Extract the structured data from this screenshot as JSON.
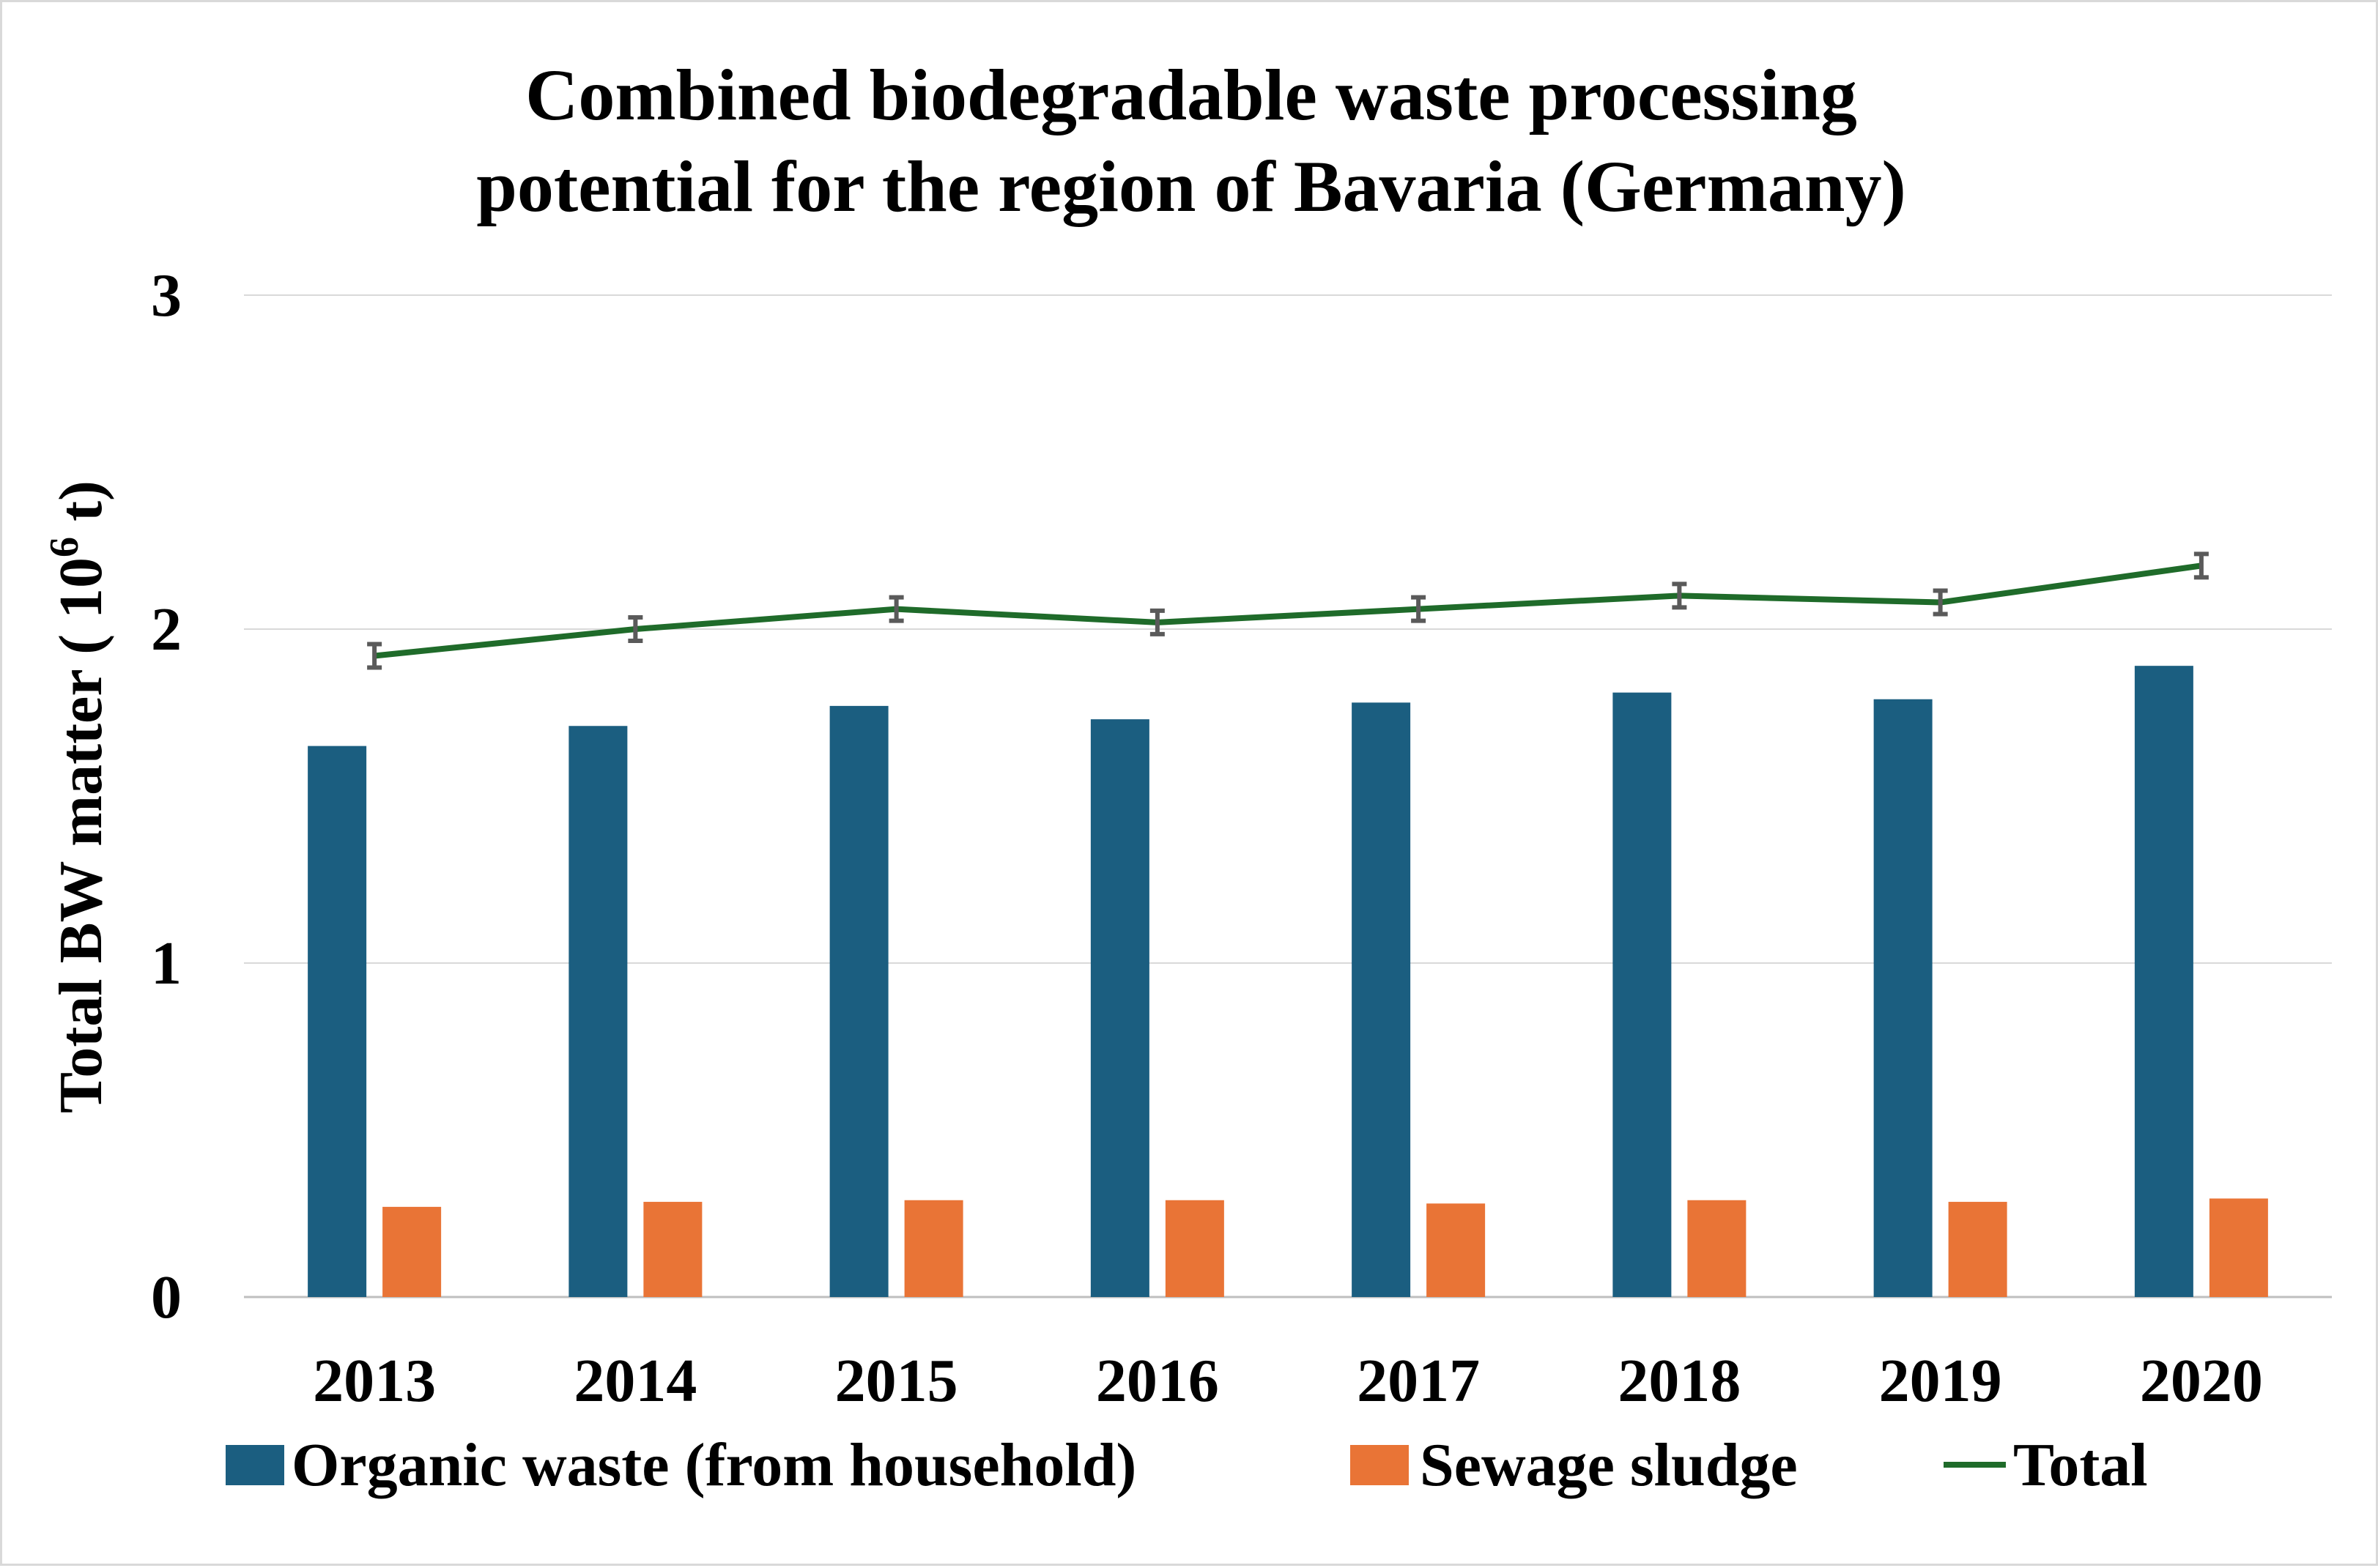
{
  "chart_data": {
    "type": "bar",
    "title_lines": [
      "Combined biodegradable waste processing",
      "potential for the region of Bavaria (Germany)"
    ],
    "xlabel": "",
    "ylabel": {
      "prefix": "Total BW matter ( 10",
      "superscript": "6",
      "suffix": " t)"
    },
    "ylim": [
      0,
      3
    ],
    "yticks": [
      "0",
      "1",
      "2",
      "3"
    ],
    "grid": true,
    "legend_position": "bottom",
    "categories": [
      "2013",
      "2014",
      "2015",
      "2016",
      "2017",
      "2018",
      "2019",
      "2020"
    ],
    "series": [
      {
        "name": "Organic waste (from household)",
        "kind": "bar",
        "color": "#1b5e80",
        "values": [
          1.65,
          1.71,
          1.77,
          1.73,
          1.78,
          1.81,
          1.79,
          1.89
        ]
      },
      {
        "name": "Sewage sludge",
        "kind": "bar",
        "color": "#e97436",
        "values": [
          0.27,
          0.285,
          0.29,
          0.29,
          0.28,
          0.29,
          0.285,
          0.295
        ]
      },
      {
        "name": "Total",
        "kind": "line",
        "color": "#1f6b2a",
        "values": [
          1.92,
          2.0,
          2.06,
          2.02,
          2.06,
          2.1,
          2.08,
          2.19
        ]
      }
    ],
    "error_bar_color": "#5a5a5a"
  }
}
